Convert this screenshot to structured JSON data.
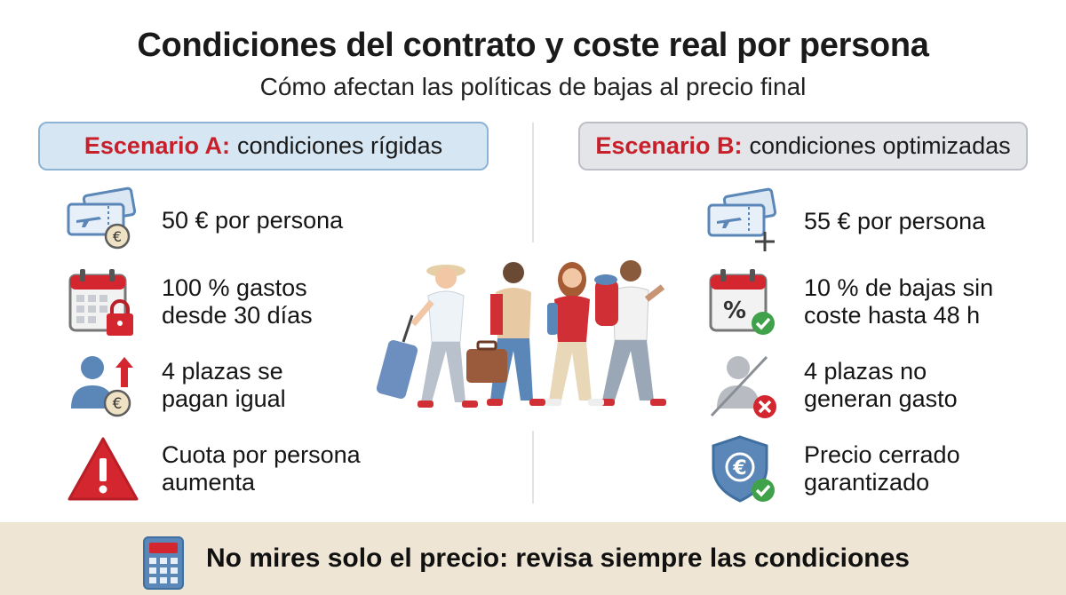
{
  "title": "Condiciones del contrato y coste real por persona",
  "subtitle": "Cómo afectan las políticas de bajas al precio final",
  "colors": {
    "accent_red": "#c8202a",
    "scenario_a_bg": "#d7e6f3",
    "scenario_b_bg": "#e3e5e8",
    "icon_blue": "#5b87b8",
    "footer_bg": "#efe5d4"
  },
  "scenario_a": {
    "label": "Escenario A:",
    "description": "condiciones rígidas",
    "items": [
      {
        "icon": "plane-ticket-euro-icon",
        "text": "50 € por persona"
      },
      {
        "icon": "calendar-lock-icon",
        "text": "100 % gastos\ndesde 30 días"
      },
      {
        "icon": "person-euro-up-arrow-icon",
        "text": "4 plazas se\npagan igual"
      },
      {
        "icon": "warning-triangle-icon",
        "text": "Cuota por persona\naumenta"
      }
    ]
  },
  "scenario_b": {
    "label": "Escenario B:",
    "description": "condiciones optimizadas",
    "items": [
      {
        "icon": "plane-ticket-plus-icon",
        "text": "55 € por persona"
      },
      {
        "icon": "calendar-percent-check-icon",
        "text": "10 % de bajas sin\ncoste hasta 48 h"
      },
      {
        "icon": "person-crossed-x-icon",
        "text": "4 plazas no\ngeneran gasto"
      },
      {
        "icon": "shield-euro-check-icon",
        "text": "Precio cerrado\ngarantizado"
      }
    ]
  },
  "illustration": {
    "icon": "travelers-group-illustration"
  },
  "footer": {
    "icon": "calculator-icon",
    "text": "No mires solo el precio: revisa siempre las condiciones"
  }
}
